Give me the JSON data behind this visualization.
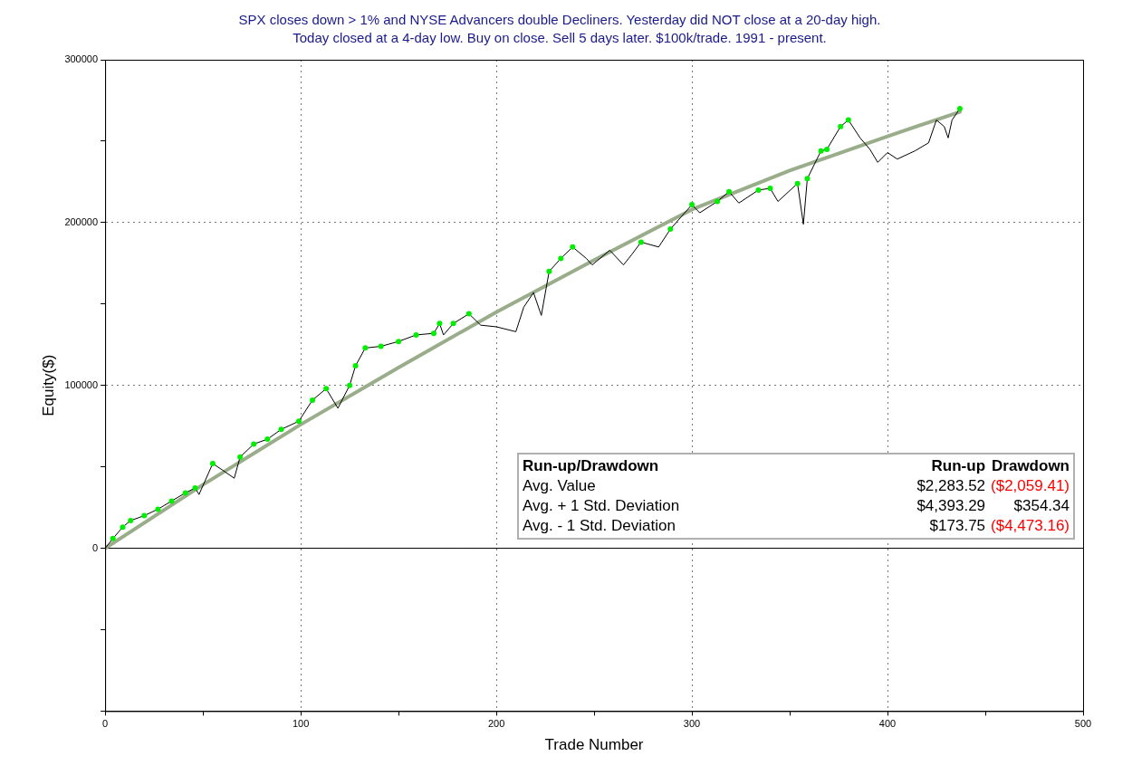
{
  "chart_data": {
    "type": "line",
    "title": "SPX closes down > 1% and NYSE Advancers double Decliners. Yesterday did NOT close at a 20-day high.",
    "subtitle": "Today closed at a 4-day low. Buy on close. Sell 5 days later. $100k/trade. 1991 - present.",
    "xlabel": "Trade Number",
    "ylabel": "Equity($)",
    "xlim": [
      0,
      500
    ],
    "xticks": [
      0,
      {
        "value": 50,
        "label": null
      },
      100,
      {
        "value": 150,
        "label": null
      },
      200,
      {
        "value": 250,
        "label": null
      },
      300,
      {
        "value": 350,
        "label": null
      },
      400,
      {
        "value": 450,
        "label": null
      },
      500
    ],
    "ylim": [
      -100000,
      300000
    ],
    "yticks": [
      {
        "value": -100000,
        "label": null
      },
      {
        "value": -50000,
        "label": null
      },
      0,
      {
        "value": 50000,
        "label": null
      },
      100000,
      {
        "value": 150000,
        "label": null
      },
      200000,
      {
        "value": 250000,
        "label": null
      },
      300000
    ],
    "grid": true,
    "legend": false,
    "ref_lines": [
      {
        "axis": "y",
        "value": 0,
        "color": "#000000"
      }
    ],
    "series": [
      {
        "type": "line",
        "color": "#000000",
        "marker": "none",
        "x": [
          0,
          4,
          9,
          13,
          20,
          27,
          34,
          41,
          46,
          48,
          55,
          60,
          66,
          69,
          76,
          83,
          90,
          99,
          106,
          113,
          119,
          125,
          128,
          133,
          141,
          150,
          159,
          168,
          171,
          173,
          178,
          186,
          192,
          200,
          210,
          214,
          219,
          223,
          227,
          233,
          239,
          246,
          249,
          258,
          265,
          269,
          274,
          283,
          289,
          300,
          304,
          313,
          319,
          324,
          334,
          340,
          344,
          354,
          357,
          359,
          366,
          369,
          376,
          380,
          386,
          391,
          395,
          400,
          405,
          414,
          421,
          425,
          429,
          431,
          433,
          437
        ],
        "values": [
          0,
          6000,
          13000,
          17000,
          20000,
          24000,
          29000,
          34000,
          37000,
          33000,
          52000,
          48000,
          43000,
          56000,
          64000,
          67000,
          73000,
          78000,
          91000,
          98000,
          86000,
          100000,
          112000,
          123000,
          124000,
          127000,
          131000,
          132000,
          138000,
          131000,
          138000,
          144000,
          137000,
          136000,
          133000,
          148000,
          157000,
          143000,
          170000,
          178000,
          185000,
          178000,
          174000,
          183000,
          174000,
          180000,
          188000,
          185000,
          196000,
          211000,
          206000,
          213000,
          219000,
          212000,
          220000,
          221000,
          213000,
          224000,
          199000,
          227000,
          244000,
          245000,
          259000,
          263000,
          252000,
          245000,
          237000,
          243000,
          239000,
          244000,
          249000,
          263000,
          259000,
          252000,
          263000,
          270000
        ]
      },
      {
        "type": "line",
        "color": "#9aad8a",
        "marker": "none",
        "x": [
          0,
          50,
          100,
          150,
          200,
          250,
          300,
          350,
          400,
          437
        ],
        "values": [
          0,
          39000,
          76000,
          111000,
          145000,
          177000,
          208000,
          232000,
          253000,
          268000
        ]
      },
      {
        "type": "scatter",
        "color": "#00ee00",
        "marker": "circle",
        "x": [
          4,
          9,
          13,
          20,
          27,
          34,
          41,
          46,
          55,
          69,
          76,
          83,
          90,
          99,
          106,
          113,
          125,
          128,
          133,
          141,
          150,
          159,
          168,
          171,
          178,
          186,
          227,
          233,
          239,
          274,
          289,
          300,
          313,
          319,
          334,
          340,
          354,
          359,
          366,
          369,
          376,
          380,
          437
        ],
        "values": [
          6000,
          13000,
          17000,
          20000,
          24000,
          29000,
          34000,
          37000,
          52000,
          56000,
          64000,
          67000,
          73000,
          78000,
          91000,
          98000,
          100000,
          112000,
          123000,
          124000,
          127000,
          131000,
          132000,
          138000,
          138000,
          144000,
          170000,
          178000,
          185000,
          188000,
          196000,
          211000,
          213000,
          219000,
          220000,
          221000,
          224000,
          227000,
          244000,
          245000,
          259000,
          263000,
          270000
        ]
      }
    ],
    "annotations": [
      "Run-up/Drawdown",
      "Run-up",
      "Drawdown",
      "Avg. Value",
      "$2,283.52",
      "($2,059.41)",
      "Avg. + 1 Std. Deviation",
      "$4,393.29",
      "$354.34",
      "Avg. - 1 Std. Deviation",
      "$173.75",
      "($4,473.16)"
    ]
  }
}
